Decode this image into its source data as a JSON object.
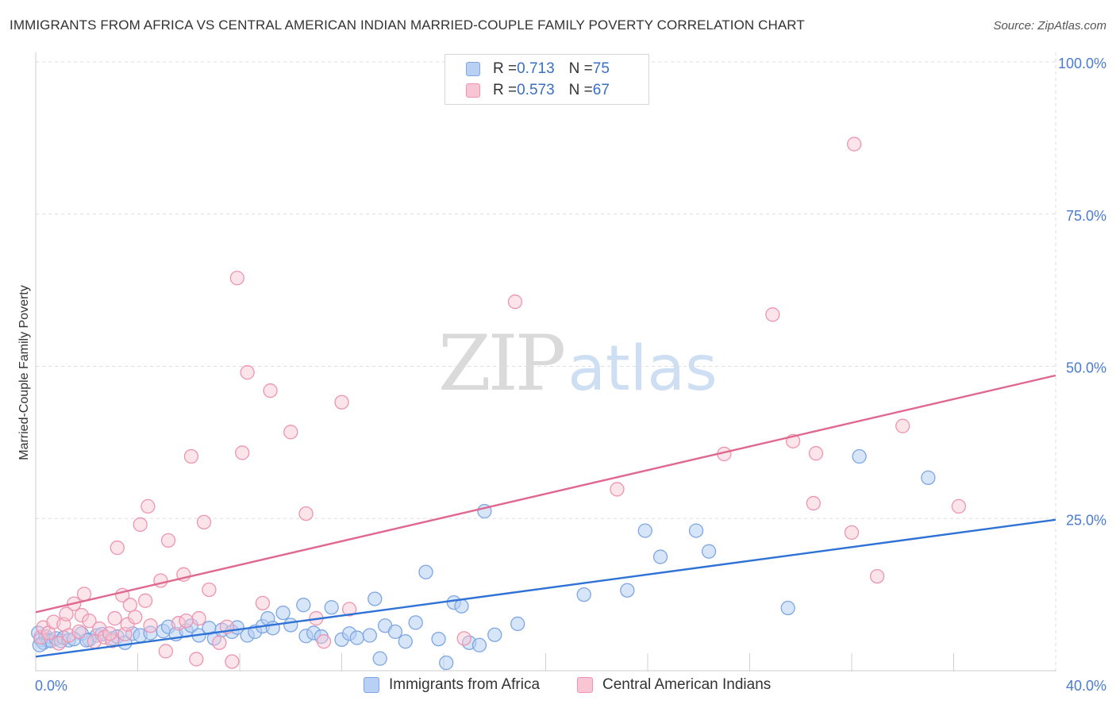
{
  "header": {
    "title": "IMMIGRANTS FROM AFRICA VS CENTRAL AMERICAN INDIAN MARRIED-COUPLE FAMILY POVERTY CORRELATION CHART",
    "source": "Source: ZipAtlas.com"
  },
  "watermark": {
    "zip": "ZIP",
    "atlas": "atlas"
  },
  "legend": {
    "rows": [
      {
        "r_label": "R = ",
        "r_value": "0.713",
        "n_label": "N = ",
        "n_value": "75"
      },
      {
        "r_label": "R = ",
        "r_value": "0.573",
        "n_label": "N = ",
        "n_value": "67"
      }
    ]
  },
  "bottom_legend": {
    "series_a": "Immigrants from Africa",
    "series_b": "Central American Indians"
  },
  "colors": {
    "blue_fill": "#b7d0f4",
    "blue_stroke": "#7ea6e3",
    "blue_line": "#2f72d6",
    "pink_fill": "#f7c5d3",
    "pink_stroke": "#ee94b0",
    "pink_line": "#e0688e",
    "tick_text": "#4a7bd0",
    "grid": "#dedede"
  },
  "chart_data": {
    "type": "scatter",
    "title": "IMMIGRANTS FROM AFRICA VS CENTRAL AMERICAN INDIAN MARRIED-COUPLE FAMILY POVERTY CORRELATION CHART",
    "xlabel": "",
    "ylabel": "Married-Couple Family Poverty",
    "xlim": [
      0,
      40
    ],
    "ylim": [
      0,
      100
    ],
    "x_tick_labels": [
      "0.0%",
      "40.0%"
    ],
    "y_ticks": [
      25,
      50,
      75,
      100
    ],
    "y_tick_labels": [
      "25.0%",
      "50.0%",
      "75.0%",
      "100.0%"
    ],
    "grid": true,
    "legend_position": "top-center",
    "series": [
      {
        "name": "Immigrants from Africa",
        "r": 0.713,
        "n": 75,
        "trend": {
          "x": [
            0,
            40
          ],
          "y": [
            2.3,
            24.8
          ]
        },
        "points": [
          [
            0.1,
            6.2
          ],
          [
            0.2,
            5.1
          ],
          [
            0.3,
            4.6
          ],
          [
            0.4,
            5.6
          ],
          [
            0.5,
            5.0
          ],
          [
            0.6,
            4.9
          ],
          [
            0.8,
            5.3
          ],
          [
            1.0,
            4.9
          ],
          [
            1.1,
            5.4
          ],
          [
            1.3,
            5.0
          ],
          [
            1.8,
            6.1
          ],
          [
            2.1,
            5.1
          ],
          [
            2.4,
            5.8
          ],
          [
            2.6,
            6.0
          ],
          [
            3.0,
            5.3
          ],
          [
            3.2,
            5.6
          ],
          [
            3.5,
            4.6
          ],
          [
            3.8,
            6.1
          ],
          [
            4.1,
            5.8
          ],
          [
            4.5,
            6.2
          ],
          [
            5.0,
            6.5
          ],
          [
            5.2,
            7.2
          ],
          [
            5.5,
            6.0
          ],
          [
            5.9,
            6.6
          ],
          [
            6.1,
            7.4
          ],
          [
            6.4,
            5.8
          ],
          [
            6.8,
            7.0
          ],
          [
            7.0,
            5.3
          ],
          [
            7.3,
            6.7
          ],
          [
            7.7,
            6.4
          ],
          [
            7.9,
            7.1
          ],
          [
            8.3,
            5.8
          ],
          [
            8.6,
            6.4
          ],
          [
            8.9,
            7.3
          ],
          [
            9.1,
            8.6
          ],
          [
            9.3,
            7.0
          ],
          [
            9.7,
            9.5
          ],
          [
            10.0,
            7.5
          ],
          [
            10.5,
            10.8
          ],
          [
            10.6,
            5.7
          ],
          [
            10.9,
            6.2
          ],
          [
            11.2,
            5.6
          ],
          [
            11.6,
            10.4
          ],
          [
            12.0,
            5.1
          ],
          [
            12.3,
            6.1
          ],
          [
            12.6,
            5.4
          ],
          [
            13.1,
            5.8
          ],
          [
            13.3,
            11.8
          ],
          [
            13.7,
            7.4
          ],
          [
            14.1,
            6.4
          ],
          [
            14.5,
            4.8
          ],
          [
            14.9,
            7.9
          ],
          [
            15.3,
            16.2
          ],
          [
            15.8,
            5.2
          ],
          [
            16.1,
            1.3
          ],
          [
            16.4,
            11.2
          ],
          [
            16.7,
            10.6
          ],
          [
            17.0,
            4.6
          ],
          [
            17.4,
            4.2
          ],
          [
            17.6,
            26.2
          ],
          [
            18.0,
            5.9
          ],
          [
            18.9,
            7.7
          ],
          [
            21.5,
            12.5
          ],
          [
            23.2,
            13.2
          ],
          [
            23.9,
            23.0
          ],
          [
            24.5,
            18.7
          ],
          [
            25.9,
            23.0
          ],
          [
            26.4,
            19.6
          ],
          [
            29.5,
            10.3
          ],
          [
            32.3,
            35.2
          ],
          [
            35.0,
            31.7
          ],
          [
            0.15,
            4.2
          ],
          [
            1.5,
            5.2
          ],
          [
            2.0,
            5.0
          ],
          [
            13.5,
            2.0
          ]
        ]
      },
      {
        "name": "Central American Indians",
        "r": 0.573,
        "n": 67,
        "trend": {
          "x": [
            0,
            40
          ],
          "y": [
            9.6,
            48.5
          ]
        },
        "points": [
          [
            0.2,
            5.5
          ],
          [
            0.3,
            7.1
          ],
          [
            0.5,
            6.2
          ],
          [
            0.7,
            8.0
          ],
          [
            0.9,
            4.5
          ],
          [
            1.1,
            7.6
          ],
          [
            1.3,
            5.8
          ],
          [
            1.5,
            11.0
          ],
          [
            1.7,
            6.4
          ],
          [
            1.8,
            9.1
          ],
          [
            1.9,
            12.6
          ],
          [
            2.1,
            8.2
          ],
          [
            2.3,
            4.8
          ],
          [
            2.5,
            6.9
          ],
          [
            2.7,
            5.5
          ],
          [
            3.0,
            4.9
          ],
          [
            3.1,
            8.6
          ],
          [
            3.2,
            20.2
          ],
          [
            3.4,
            12.4
          ],
          [
            3.5,
            6.0
          ],
          [
            3.6,
            7.6
          ],
          [
            3.7,
            10.8
          ],
          [
            3.9,
            8.8
          ],
          [
            4.1,
            24.0
          ],
          [
            4.3,
            11.5
          ],
          [
            4.4,
            27.0
          ],
          [
            4.5,
            7.4
          ],
          [
            4.9,
            14.8
          ],
          [
            5.1,
            3.2
          ],
          [
            5.2,
            21.4
          ],
          [
            5.6,
            7.8
          ],
          [
            5.8,
            15.8
          ],
          [
            6.1,
            35.2
          ],
          [
            6.3,
            1.9
          ],
          [
            6.4,
            8.6
          ],
          [
            6.6,
            24.4
          ],
          [
            6.8,
            13.3
          ],
          [
            7.2,
            4.6
          ],
          [
            7.5,
            7.2
          ],
          [
            7.7,
            1.5
          ],
          [
            7.9,
            64.5
          ],
          [
            8.1,
            35.8
          ],
          [
            8.3,
            49.0
          ],
          [
            8.9,
            11.1
          ],
          [
            9.2,
            46.0
          ],
          [
            10.0,
            39.2
          ],
          [
            10.6,
            25.8
          ],
          [
            11.0,
            8.6
          ],
          [
            11.3,
            4.8
          ],
          [
            12.0,
            44.1
          ],
          [
            12.3,
            10.1
          ],
          [
            16.8,
            5.3
          ],
          [
            18.8,
            60.6
          ],
          [
            22.8,
            29.8
          ],
          [
            27.0,
            35.6
          ],
          [
            28.9,
            58.5
          ],
          [
            29.7,
            37.7
          ],
          [
            30.5,
            27.5
          ],
          [
            30.6,
            35.7
          ],
          [
            32.0,
            22.7
          ],
          [
            32.1,
            86.5
          ],
          [
            33.0,
            15.5
          ],
          [
            34.0,
            40.2
          ],
          [
            36.2,
            27.0
          ],
          [
            2.9,
            6.1
          ],
          [
            5.9,
            8.2
          ],
          [
            1.2,
            9.3
          ]
        ]
      }
    ]
  }
}
